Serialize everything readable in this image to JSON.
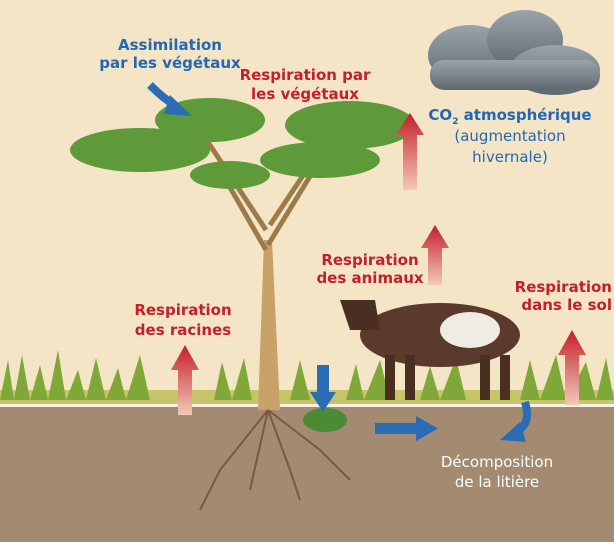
{
  "labels": {
    "assimilation": [
      "Assimilation",
      "par les végétaux"
    ],
    "respiration_plants": [
      "Respiration par",
      "les végétaux"
    ],
    "co2": {
      "main": "CO",
      "subscript": "2",
      "rest": " atmosphérique",
      "note": [
        "(augmentation",
        "hivernale)"
      ]
    },
    "respiration_animals": [
      "Respiration",
      "des animaux"
    ],
    "respiration_soil": [
      "Respiration",
      "dans le sol"
    ],
    "respiration_roots": [
      "Respiration",
      "des racines"
    ],
    "decomposition": [
      "Décomposition",
      "de la litière"
    ]
  }
}
